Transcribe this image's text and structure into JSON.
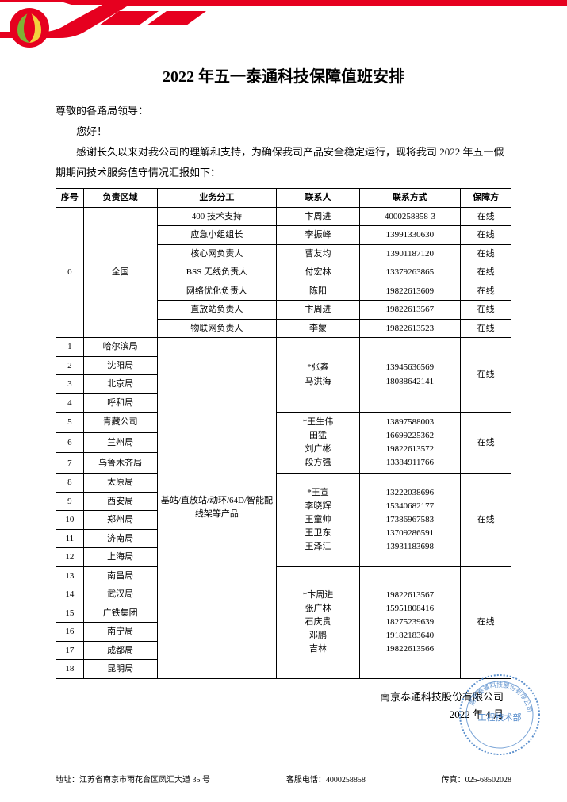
{
  "colors": {
    "brand_red": "#e6001f",
    "logo_green": "#7fb135",
    "logo_yellow": "#f3d03e",
    "stamp_blue": "#3f7cc4",
    "border": "#000000"
  },
  "title": "2022 年五一泰通科技保障值班安排",
  "greeting_line1": "尊敬的各路局领导：",
  "greeting_line2": "您好！",
  "intro": "感谢长久以来对我公司的理解和支持，为确保我司产品安全稳定运行，现将我司 2022 年五一假期期间技术服务值守情况汇报如下：",
  "table": {
    "headers": [
      "序号",
      "负责区域",
      "业务分工",
      "联系人",
      "联系方式",
      "保障方"
    ],
    "national": {
      "seq": "0",
      "region": "全国",
      "rows": [
        {
          "task": "400 技术支持",
          "contact": "卞周进",
          "phone": "4000258858-3",
          "status": "在线"
        },
        {
          "task": "应急小组组长",
          "contact": "李振峰",
          "phone": "13991330630",
          "status": "在线"
        },
        {
          "task": "核心网负责人",
          "contact": "曹友均",
          "phone": "13901187120",
          "status": "在线"
        },
        {
          "task": "BSS 无线负责人",
          "contact": "付宏林",
          "phone": "13379263865",
          "status": "在线"
        },
        {
          "task": "网络优化负责人",
          "contact": "陈阳",
          "phone": "19822613609",
          "status": "在线"
        },
        {
          "task": "直放站负责人",
          "contact": "卞周进",
          "phone": "19822613567",
          "status": "在线"
        },
        {
          "task": "物联网负责人",
          "contact": "李蒙",
          "phone": "19822613523",
          "status": "在线"
        }
      ]
    },
    "product_task": "基站/直放站/动环/64D/智能配线架等产品",
    "bureaus": [
      {
        "seq": "1",
        "region": "哈尔滨局"
      },
      {
        "seq": "2",
        "region": "沈阳局"
      },
      {
        "seq": "3",
        "region": "北京局"
      },
      {
        "seq": "4",
        "region": "呼和局"
      },
      {
        "seq": "5",
        "region": "青藏公司"
      },
      {
        "seq": "6",
        "region": "兰州局"
      },
      {
        "seq": "7",
        "region": "乌鲁木齐局"
      },
      {
        "seq": "8",
        "region": "太原局"
      },
      {
        "seq": "9",
        "region": "西安局"
      },
      {
        "seq": "10",
        "region": "郑州局"
      },
      {
        "seq": "11",
        "region": "济南局"
      },
      {
        "seq": "12",
        "region": "上海局"
      },
      {
        "seq": "13",
        "region": "南昌局"
      },
      {
        "seq": "14",
        "region": "武汉局"
      },
      {
        "seq": "15",
        "region": "广铁集团"
      },
      {
        "seq": "16",
        "region": "南宁局"
      },
      {
        "seq": "17",
        "region": "成都局"
      },
      {
        "seq": "18",
        "region": "昆明局"
      }
    ],
    "groups": [
      {
        "contacts": "*张鑫\n马洪海",
        "phones": "13945636569\n18088642141",
        "status": "在线"
      },
      {
        "contacts": "*王生伟\n田猛\n刘广彬\n段方强",
        "phones": "13897588003\n16699225362\n19822613572\n13384911766",
        "status": "在线"
      },
      {
        "contacts": "*王宣\n李晓辉\n王童帅\n王卫东\n王泽江",
        "phones": "13222038696\n15340682177\n17386967583\n13709286591\n13931183698",
        "status": "在线"
      },
      {
        "contacts": "*卞周进\n张广林\n石庆贵\n邓鹏\n吉林",
        "phones": "19822613567\n15951808416\n18275239639\n19182183640\n19822613566",
        "status": "在线"
      }
    ]
  },
  "signature": {
    "company": "南京泰通科技股份有限公司",
    "date": "2022 年 4 月"
  },
  "footer": {
    "address_label": "地址：",
    "address": "江苏省南京市雨花台区凤汇大道 35 号",
    "service_label": "客服电话：",
    "service_phone": "4000258858",
    "fax_label": "传真：",
    "fax": "025-68502028"
  },
  "stamp_text": "工程技术部"
}
